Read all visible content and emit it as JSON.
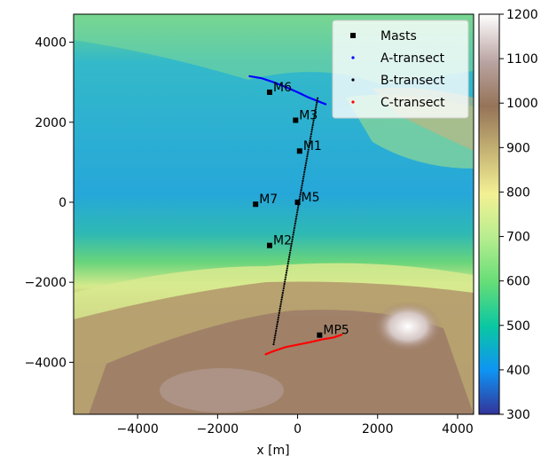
{
  "chart_data": {
    "type": "scatter",
    "background": "terrain elevation map",
    "xlabel": "x [m]",
    "ylabel": "",
    "xlim": [
      -5600,
      4400
    ],
    "ylim": [
      -5300,
      4700
    ],
    "x_ticks": [
      -4000,
      -2000,
      0,
      2000,
      4000
    ],
    "x_tick_labels": [
      "−4000",
      "−2000",
      "0",
      "2000",
      "4000"
    ],
    "y_ticks": [
      -4000,
      -2000,
      0,
      2000,
      4000
    ],
    "y_tick_labels": [
      "−4000",
      "−2000",
      "0",
      "2000",
      "4000"
    ],
    "grid": false,
    "legend_position": "top-right",
    "colorbar": {
      "range": [
        300,
        1200
      ],
      "ticks": [
        300,
        400,
        500,
        600,
        700,
        800,
        900,
        1000,
        1100,
        1200
      ],
      "colormap": "terrain"
    },
    "series": [
      {
        "name": "Masts",
        "marker": "square",
        "color": "#000000",
        "points": [
          {
            "label": "M6",
            "x": -700,
            "y": 2750
          },
          {
            "label": "M3",
            "x": -50,
            "y": 2050
          },
          {
            "label": "M1",
            "x": 50,
            "y": 1280
          },
          {
            "label": "M5",
            "x": 0,
            "y": 0
          },
          {
            "label": "M7",
            "x": -1050,
            "y": -50
          },
          {
            "label": "M2",
            "x": -700,
            "y": -1080
          },
          {
            "label": "MP5",
            "x": 550,
            "y": -3320
          }
        ]
      },
      {
        "name": "A-transect",
        "marker": "dot",
        "color": "#0000ff",
        "x": [
          -1200,
          -900,
          -600,
          -300,
          0,
          250,
          500,
          700
        ],
        "y": [
          3150,
          3100,
          3000,
          2880,
          2750,
          2630,
          2530,
          2450
        ]
      },
      {
        "name": "B-transect",
        "marker": "dot",
        "color": "#000000",
        "x": [
          -600,
          500
        ],
        "y": [
          -3550,
          2600
        ]
      },
      {
        "name": "C-transect",
        "marker": "dot",
        "color": "#ff0000",
        "x": [
          -800,
          -600,
          -300,
          0,
          300,
          600,
          900,
          1100
        ],
        "y": [
          -3800,
          -3720,
          -3620,
          -3560,
          -3500,
          -3430,
          -3380,
          -3310
        ]
      }
    ]
  }
}
